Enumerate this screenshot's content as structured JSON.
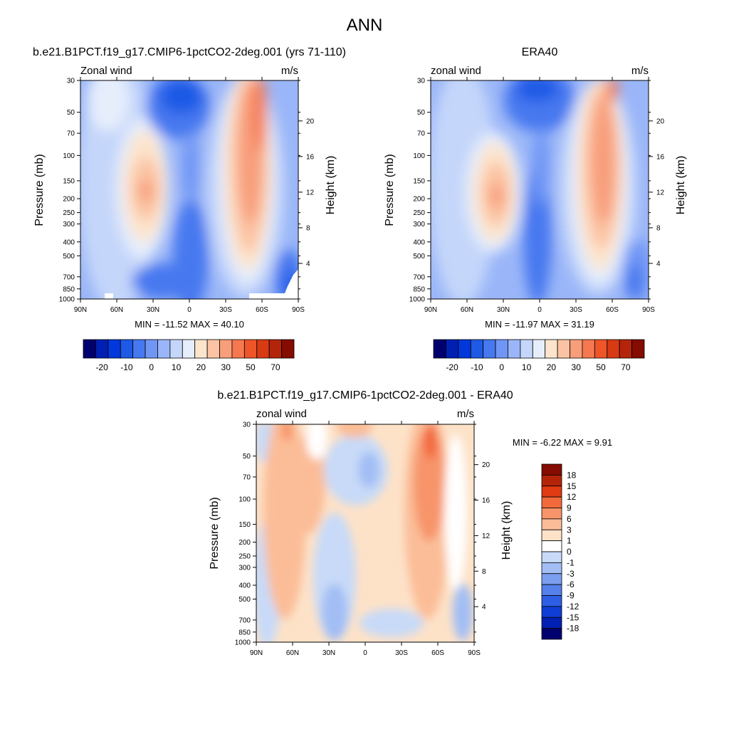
{
  "figure_title": "ANN",
  "panels": [
    {
      "title": "b.e21.B1PCT.f19_g17.CMIP6-1pctCO2-2deg.001 (yrs 71-110)",
      "left_label": "Zonal wind",
      "right_label": "m/s",
      "stats": "MIN = -11.52  MAX =  40.10"
    },
    {
      "title": "ERA40",
      "left_label": "zonal wind",
      "right_label": "m/s",
      "stats": "MIN = -11.97  MAX =  31.19"
    },
    {
      "title": "b.e21.B1PCT.f19_g17.CMIP6-1pctCO2-2deg.001 - ERA40",
      "left_label": "zonal wind",
      "right_label": "m/s",
      "stats": "MIN =  -6.22  MAX =   9.91"
    }
  ],
  "axis": {
    "ylabel": "Pressure (mb)",
    "y2label": "Height (km)",
    "pressure_ticks": [
      30,
      50,
      70,
      100,
      150,
      200,
      250,
      300,
      400,
      500,
      700,
      850,
      1000
    ],
    "height_ticks": [
      4,
      8,
      12,
      16,
      20
    ],
    "lat_ticks": [
      "90N",
      "60N",
      "30N",
      "0",
      "30S",
      "60S",
      "90S"
    ]
  },
  "colorbars": {
    "main": {
      "colors": [
        "#00006e",
        "#0020b4",
        "#0038dc",
        "#1e5ae6",
        "#4678ef",
        "#7096f5",
        "#9ab6f8",
        "#c4d6fa",
        "#e6eefc",
        "#fde4cc",
        "#fbc3a3",
        "#f89e7b",
        "#f57850",
        "#ee5528",
        "#d83a14",
        "#b4240a",
        "#840c00"
      ],
      "tick_labels": [
        "-20",
        "-10",
        "0",
        "10",
        "20",
        "30",
        "50",
        "70"
      ]
    },
    "diff": {
      "colors": [
        "#840c00",
        "#b4240a",
        "#e03a12",
        "#f26a3c",
        "#f7946a",
        "#fbbd98",
        "#fde2c8",
        "#ffffff",
        "#c8daf8",
        "#a2bef4",
        "#7c9eef",
        "#5680ea",
        "#2e5ee4",
        "#0e3ed6",
        "#0020b4",
        "#00006e"
      ],
      "labels": [
        "18",
        "15",
        "12",
        "9",
        "6",
        "3",
        "1",
        "0",
        "-1",
        "-3",
        "-6",
        "-9",
        "-12",
        "-15",
        "-18"
      ]
    }
  },
  "chart_data": [
    {
      "type": "heatmap",
      "title": "b.e21.B1PCT.f19_g17.CMIP6-1pctCO2-2deg.001 (yrs 71-110)",
      "xlabel": "",
      "ylabel": "Pressure (mb)",
      "y2label": "Height (km)",
      "x_ticks": [
        "90N",
        "60N",
        "30N",
        "0",
        "30S",
        "60S",
        "90S"
      ],
      "xlim": [
        90,
        -90
      ],
      "ylim": [
        1000,
        30
      ],
      "y_scale": "log",
      "min": -11.52,
      "max": 40.1,
      "units": "m/s"
    },
    {
      "type": "heatmap",
      "title": "ERA40",
      "xlabel": "",
      "ylabel": "Pressure (mb)",
      "y2label": "Height (km)",
      "x_ticks": [
        "90N",
        "60N",
        "30N",
        "0",
        "30S",
        "60S",
        "90S"
      ],
      "xlim": [
        90,
        -90
      ],
      "ylim": [
        1000,
        30
      ],
      "y_scale": "log",
      "min": -11.97,
      "max": 31.19,
      "units": "m/s"
    },
    {
      "type": "heatmap",
      "title": "b.e21.B1PCT.f19_g17.CMIP6-1pctCO2-2deg.001 - ERA40",
      "xlabel": "",
      "ylabel": "Pressure (mb)",
      "y2label": "Height (km)",
      "x_ticks": [
        "90N",
        "60N",
        "30N",
        "0",
        "30S",
        "60S",
        "90S"
      ],
      "xlim": [
        90,
        -90
      ],
      "ylim": [
        1000,
        30
      ],
      "y_scale": "log",
      "min": -6.22,
      "max": 9.91,
      "units": "m/s"
    }
  ]
}
